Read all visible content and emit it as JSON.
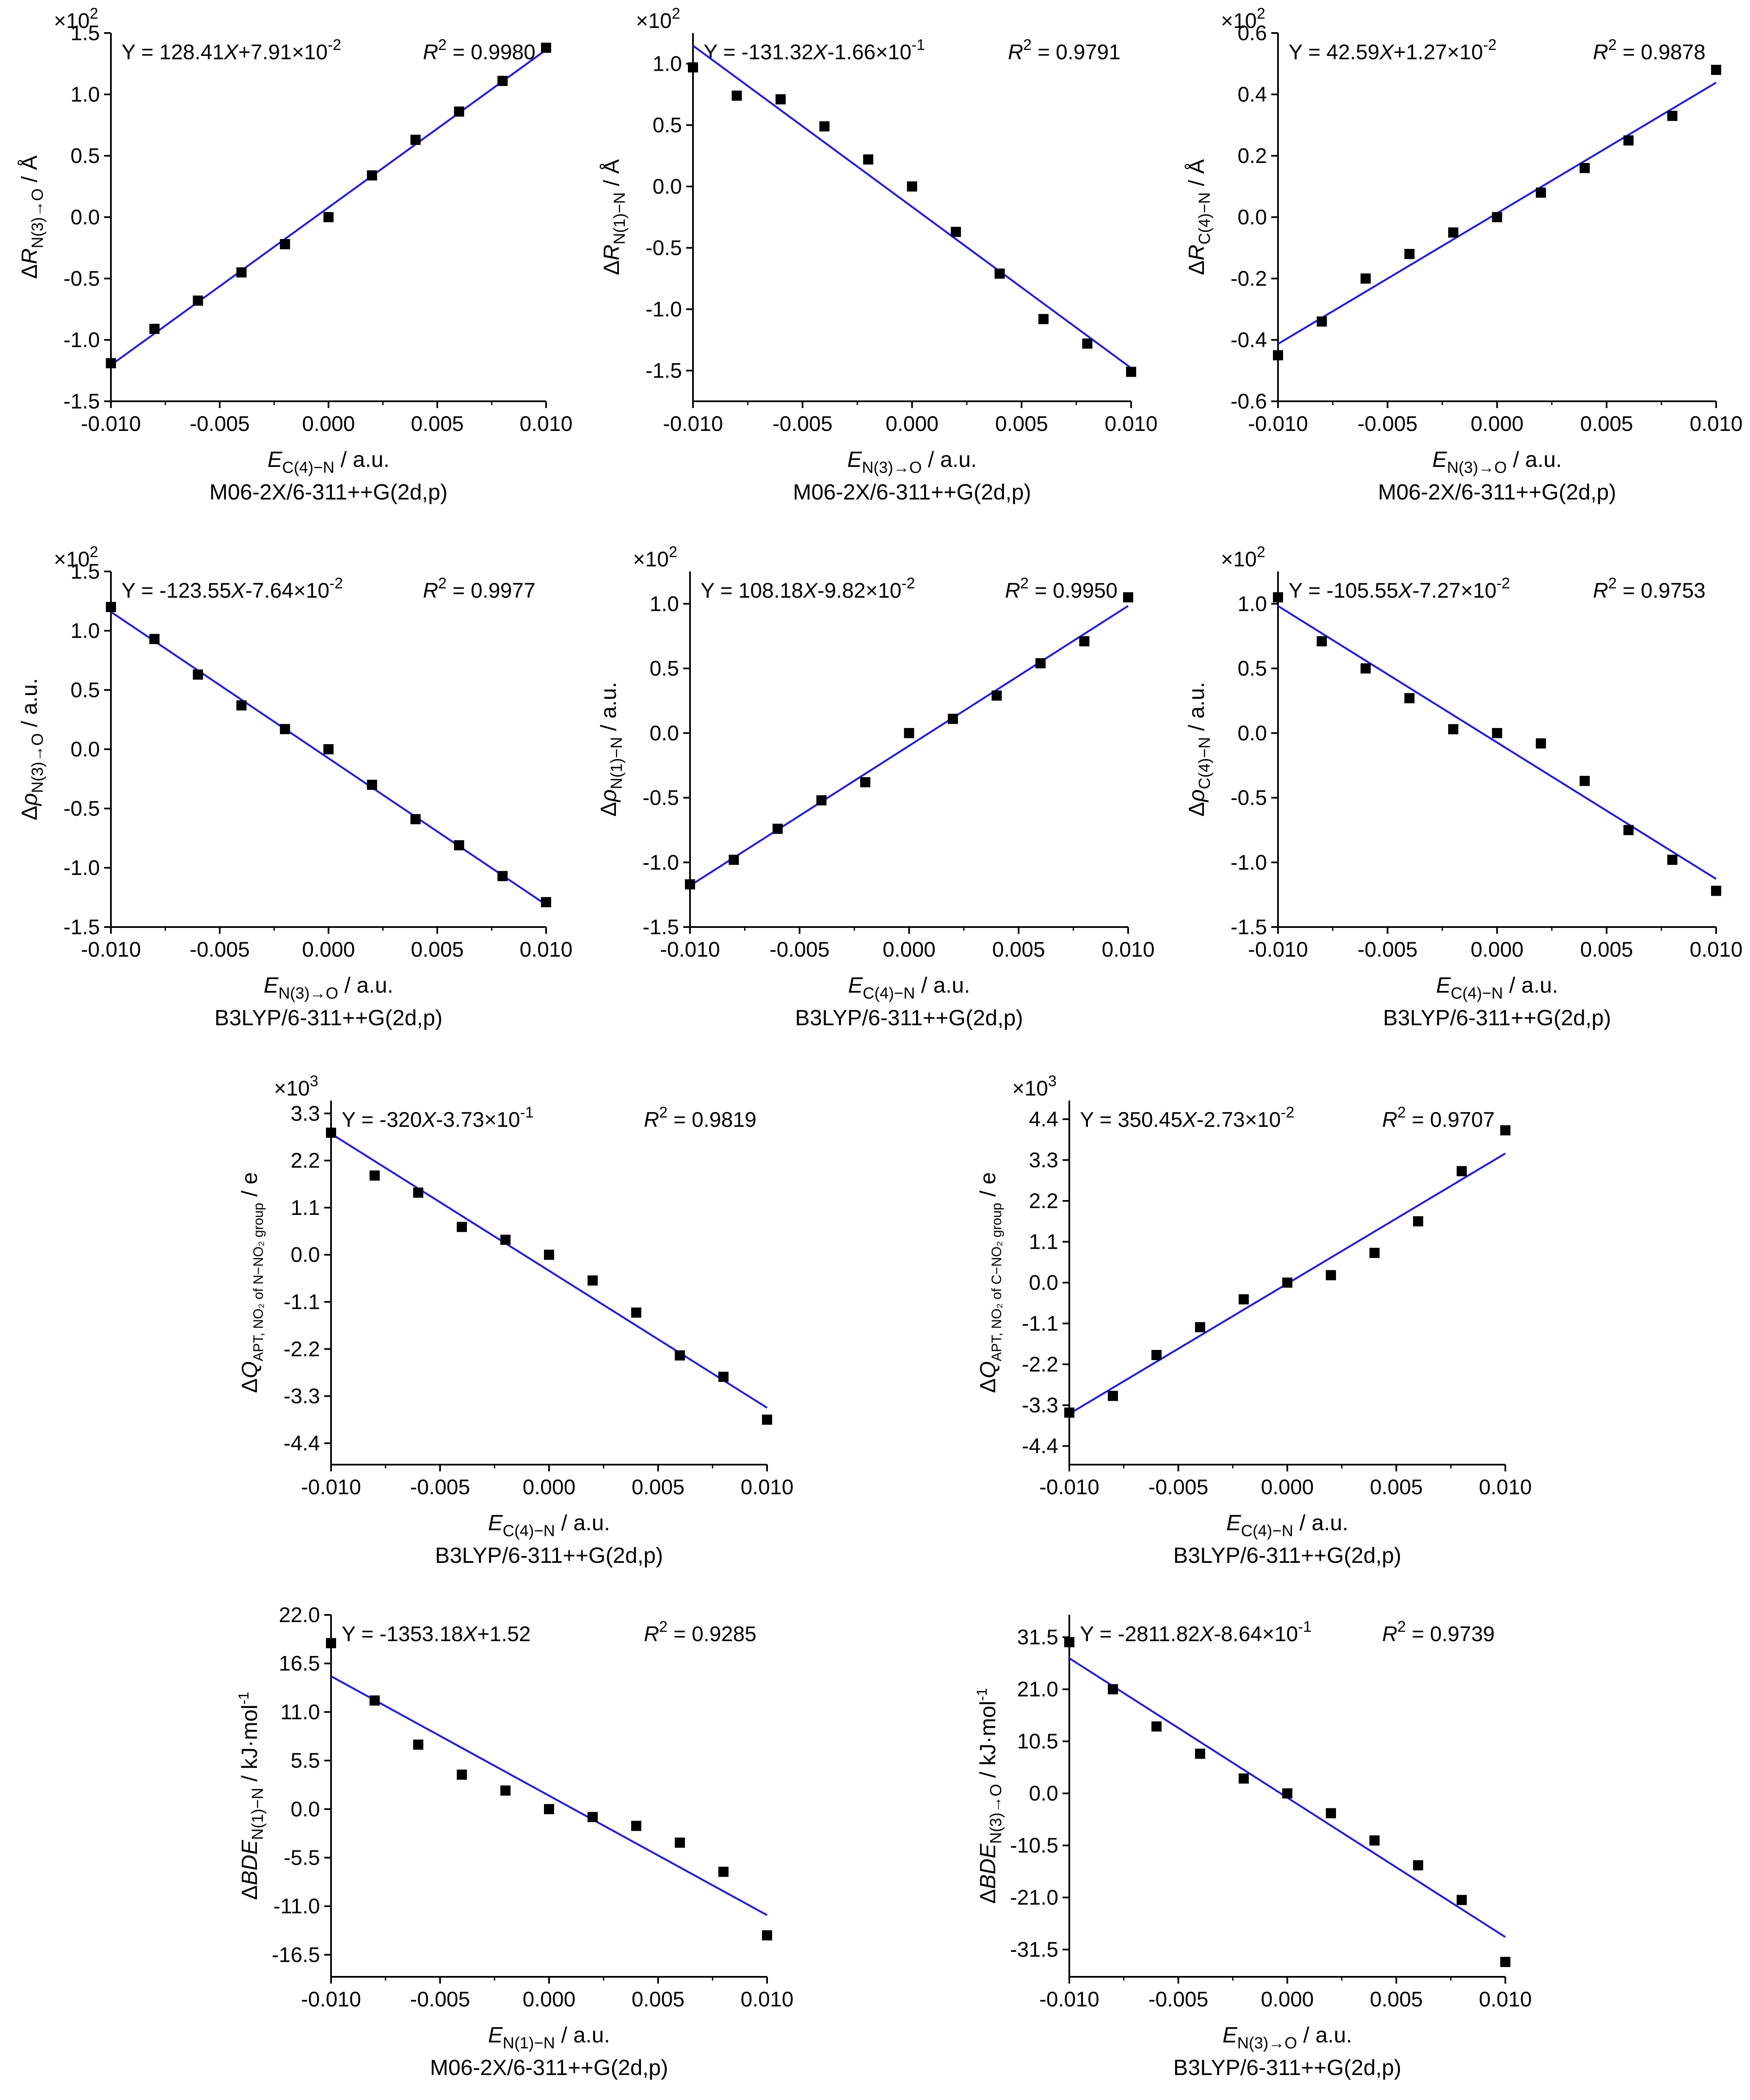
{
  "chart_data": [
    {
      "type": "scatter",
      "id": "a",
      "multiplier": "×10",
      "multiplier_exp": "2",
      "xlabel": {
        "main": "E",
        "sub": "C(4)−N",
        "unit": " / a.u."
      },
      "ylabel": {
        "prefix": "Δ",
        "main": "R",
        "sub": "N(3)→O",
        "unit": " / Å"
      },
      "method": "M06-2X/6-311++G(2d,p)",
      "eq": {
        "prefix": "Y = 128.41",
        "var": "X",
        "rest": "+7.91×10",
        "exp": "-2"
      },
      "r2": {
        "label": "R",
        "exp": "2",
        "value": " = 0.9980"
      },
      "xlim": [
        -0.01,
        0.01
      ],
      "ylim": [
        -1.5,
        1.5
      ],
      "xticks": [
        -0.01,
        -0.005,
        0,
        0.005,
        0.01
      ],
      "xtick_labels": [
        "-0.010",
        "-0.005",
        "0.000",
        "0.005",
        "0.010"
      ],
      "yticks": [
        -1.5,
        -1.0,
        -0.5,
        0.0,
        0.5,
        1.0,
        1.5
      ],
      "ytick_labels": [
        "-1.5",
        "-1.0",
        "-0.5",
        "0.0",
        "0.5",
        "1.0",
        "1.5"
      ],
      "x": [
        -0.01,
        -0.008,
        -0.006,
        -0.004,
        -0.002,
        0,
        0.002,
        0.004,
        0.006,
        0.008,
        0.01
      ],
      "y": [
        -1.19,
        -0.91,
        -0.68,
        -0.45,
        -0.22,
        0.0,
        0.34,
        0.63,
        0.86,
        1.11,
        1.38
      ],
      "fit": {
        "slope": 128.41,
        "intercept": 0.0791
      }
    },
    {
      "type": "scatter",
      "id": "b",
      "multiplier": "×10",
      "multiplier_exp": "2",
      "xlabel": {
        "main": "E",
        "sub": "N(3)→O",
        "unit": " / a.u."
      },
      "ylabel": {
        "prefix": "Δ",
        "main": "R",
        "sub": "N(1)−N",
        "unit": " / Å"
      },
      "method": "M06-2X/6-311++G(2d,p)",
      "eq": {
        "prefix": "Y = -131.32",
        "var": "X",
        "rest": "-1.66×10",
        "exp": "-1"
      },
      "r2": {
        "label": "R",
        "exp": "2",
        "value": " = 0.9791"
      },
      "xlim": [
        -0.01,
        0.01
      ],
      "ylim": [
        -1.75,
        1.25
      ],
      "xticks": [
        -0.01,
        -0.005,
        0,
        0.005,
        0.01
      ],
      "xtick_labels": [
        "-0.010",
        "-0.005",
        "0.000",
        "0.005",
        "0.010"
      ],
      "yticks": [
        -1.5,
        -1.0,
        -0.5,
        0.0,
        0.5,
        1.0
      ],
      "ytick_labels": [
        "-1.5",
        "-1.0",
        "-0.5",
        "0.0",
        "0.5",
        "1.0"
      ],
      "x": [
        -0.01,
        -0.008,
        -0.006,
        -0.004,
        -0.002,
        0,
        0.002,
        0.004,
        0.006,
        0.008,
        0.01
      ],
      "y": [
        0.97,
        0.74,
        0.71,
        0.49,
        0.22,
        0.0,
        -0.37,
        -0.71,
        -1.08,
        -1.28,
        -1.51
      ],
      "fit": {
        "slope": -131.32,
        "intercept": -0.166
      }
    },
    {
      "type": "scatter",
      "id": "c",
      "multiplier": "×10",
      "multiplier_exp": "2",
      "xlabel": {
        "main": "E",
        "sub": "N(3)→O",
        "unit": " / a.u."
      },
      "ylabel": {
        "prefix": "Δ",
        "main": "R",
        "sub": "C(4)−N",
        "unit": " / Å"
      },
      "method": "M06-2X/6-311++G(2d,p)",
      "eq": {
        "prefix": "Y = 42.59",
        "var": "X",
        "rest": "+1.27×10",
        "exp": "-2"
      },
      "r2": {
        "label": "R",
        "exp": "2",
        "value": " = 0.9878"
      },
      "xlim": [
        -0.01,
        0.01
      ],
      "ylim": [
        -0.6,
        0.6
      ],
      "xticks": [
        -0.01,
        -0.005,
        0,
        0.005,
        0.01
      ],
      "xtick_labels": [
        "-0.010",
        "-0.005",
        "0.000",
        "0.005",
        "0.010"
      ],
      "yticks": [
        -0.6,
        -0.4,
        -0.2,
        0.0,
        0.2,
        0.4,
        0.6
      ],
      "ytick_labels": [
        "-0.6",
        "-0.4",
        "-0.2",
        "0.0",
        "0.2",
        "0.4",
        "0.6"
      ],
      "x": [
        -0.01,
        -0.008,
        -0.006,
        -0.004,
        -0.002,
        0,
        0.002,
        0.004,
        0.006,
        0.008,
        0.01
      ],
      "y": [
        -0.45,
        -0.34,
        -0.2,
        -0.12,
        -0.05,
        0.0,
        0.08,
        0.16,
        0.25,
        0.33,
        0.48
      ],
      "fit": {
        "slope": 42.59,
        "intercept": 0.0127
      }
    },
    {
      "type": "scatter",
      "id": "d",
      "multiplier": "×10",
      "multiplier_exp": "2",
      "xlabel": {
        "main": "E",
        "sub": "N(3)→O",
        "unit": " / a.u."
      },
      "ylabel": {
        "prefix": "Δ",
        "main": "ρ",
        "sub": "N(3)→O",
        "unit": " / a.u."
      },
      "method": "B3LYP/6-311++G(2d,p)",
      "eq": {
        "prefix": "Y = -123.55",
        "var": "X",
        "rest": "-7.64×10",
        "exp": "-2"
      },
      "r2": {
        "label": "R",
        "exp": "2",
        "value": " = 0.9977"
      },
      "xlim": [
        -0.01,
        0.01
      ],
      "ylim": [
        -1.5,
        1.5
      ],
      "xticks": [
        -0.01,
        -0.005,
        0,
        0.005,
        0.01
      ],
      "xtick_labels": [
        "-0.010",
        "-0.005",
        "0.000",
        "0.005",
        "0.010"
      ],
      "yticks": [
        -1.5,
        -1.0,
        -0.5,
        0.0,
        0.5,
        1.0,
        1.5
      ],
      "ytick_labels": [
        "-1.5",
        "-1.0",
        "-0.5",
        "0.0",
        "0.5",
        "1.0",
        "1.5"
      ],
      "x": [
        -0.01,
        -0.008,
        -0.006,
        -0.004,
        -0.002,
        0,
        0.002,
        0.004,
        0.006,
        0.008,
        0.01
      ],
      "y": [
        1.2,
        0.93,
        0.63,
        0.37,
        0.17,
        0.0,
        -0.3,
        -0.59,
        -0.81,
        -1.07,
        -1.29
      ],
      "fit": {
        "slope": -123.55,
        "intercept": -0.0764
      }
    },
    {
      "type": "scatter",
      "id": "e",
      "multiplier": "×10",
      "multiplier_exp": "2",
      "xlabel": {
        "main": "E",
        "sub": "C(4)−N",
        "unit": " / a.u."
      },
      "ylabel": {
        "prefix": "Δ",
        "main": "ρ",
        "sub": "N(1)−N",
        "unit": " / a.u."
      },
      "method": "B3LYP/6-311++G(2d,p)",
      "eq": {
        "prefix": "Y = 108.18",
        "var": "X",
        "rest": "-9.82×10",
        "exp": "-2"
      },
      "r2": {
        "label": "R",
        "exp": "2",
        "value": " = 0.9950"
      },
      "xlim": [
        -0.01,
        0.01
      ],
      "ylim": [
        -1.5,
        1.25
      ],
      "xticks": [
        -0.01,
        -0.005,
        0,
        0.005,
        0.01
      ],
      "xtick_labels": [
        "-0.010",
        "-0.005",
        "0.000",
        "0.005",
        "0.010"
      ],
      "yticks": [
        -1.5,
        -1.0,
        -0.5,
        0.0,
        0.5,
        1.0
      ],
      "ytick_labels": [
        "-1.5",
        "-1.0",
        "-0.5",
        "0.0",
        "0.5",
        "1.0"
      ],
      "x": [
        -0.01,
        -0.008,
        -0.006,
        -0.004,
        -0.002,
        0,
        0.002,
        0.004,
        0.006,
        0.008,
        0.01
      ],
      "y": [
        -1.17,
        -0.98,
        -0.74,
        -0.52,
        -0.38,
        0.0,
        0.11,
        0.29,
        0.54,
        0.71,
        1.05
      ],
      "fit": {
        "slope": 108.18,
        "intercept": -0.0982
      }
    },
    {
      "type": "scatter",
      "id": "f",
      "multiplier": "×10",
      "multiplier_exp": "2",
      "xlabel": {
        "main": "E",
        "sub": "C(4)−N",
        "unit": " / a.u."
      },
      "ylabel": {
        "prefix": "Δ",
        "main": "ρ",
        "sub": "C(4)−N",
        "unit": " / a.u."
      },
      "method": "B3LYP/6-311++G(2d,p)",
      "eq": {
        "prefix": "Y = -105.55",
        "var": "X",
        "rest": "-7.27×10",
        "exp": "-2"
      },
      "r2": {
        "label": "R",
        "exp": "2",
        "value": " = 0.9753"
      },
      "xlim": [
        -0.01,
        0.01
      ],
      "ylim": [
        -1.5,
        1.25
      ],
      "xticks": [
        -0.01,
        -0.005,
        0,
        0.005,
        0.01
      ],
      "xtick_labels": [
        "-0.010",
        "-0.005",
        "0.000",
        "0.005",
        "0.010"
      ],
      "yticks": [
        -1.5,
        -1.0,
        -0.5,
        0.0,
        0.5,
        1.0
      ],
      "ytick_labels": [
        "-1.5",
        "-1.0",
        "-0.5",
        "0.0",
        "0.5",
        "1.0"
      ],
      "x": [
        -0.01,
        -0.008,
        -0.006,
        -0.004,
        -0.002,
        0,
        0.002,
        0.004,
        0.006,
        0.008,
        0.01
      ],
      "y": [
        1.05,
        0.71,
        0.5,
        0.27,
        0.03,
        0.0,
        -0.08,
        -0.37,
        -0.75,
        -0.98,
        -1.22
      ],
      "fit": {
        "slope": -105.55,
        "intercept": -0.0727
      }
    },
    {
      "type": "scatter",
      "id": "g",
      "multiplier": "×10",
      "multiplier_exp": "3",
      "xlabel": {
        "main": "E",
        "sub": "C(4)−N",
        "unit": " / a.u."
      },
      "ylabel": {
        "prefix": "Δ",
        "main": "Q",
        "sub": "APT, NO₂ of N−NO₂ group",
        "unit": " / e"
      },
      "method": "B3LYP/6-311++G(2d,p)",
      "eq": {
        "prefix": "Y = -320",
        "var": "X",
        "rest": "-3.73×10",
        "exp": "-1"
      },
      "r2": {
        "label": "R",
        "exp": "2",
        "value": " = 0.9819"
      },
      "xlim": [
        -0.01,
        0.01
      ],
      "ylim": [
        -4.9,
        3.6
      ],
      "xticks": [
        -0.01,
        -0.005,
        0,
        0.005,
        0.01
      ],
      "xtick_labels": [
        "-0.010",
        "-0.005",
        "0.000",
        "0.005",
        "0.010"
      ],
      "yticks": [
        -4.4,
        -3.3,
        -2.2,
        -1.1,
        0.0,
        1.1,
        2.2,
        3.3
      ],
      "ytick_labels": [
        "-4.4",
        "-3.3",
        "-2.2",
        "-1.1",
        "0.0",
        "1.1",
        "2.2",
        "3.3"
      ],
      "x": [
        -0.01,
        -0.008,
        -0.006,
        -0.004,
        -0.002,
        0,
        0.002,
        0.004,
        0.006,
        0.008,
        0.01
      ],
      "y": [
        2.85,
        1.85,
        1.45,
        0.65,
        0.35,
        0.0,
        -0.6,
        -1.35,
        -2.35,
        -2.85,
        -3.85
      ],
      "fit": {
        "slope": -320,
        "intercept": -0.373
      }
    },
    {
      "type": "scatter",
      "id": "h",
      "multiplier": "×10",
      "multiplier_exp": "3",
      "xlabel": {
        "main": "E",
        "sub": "C(4)−N",
        "unit": " / a.u."
      },
      "ylabel": {
        "prefix": "Δ",
        "main": "Q",
        "sub": "APT, NO₂ of C−NO₂ group",
        "unit": " / e"
      },
      "method": "B3LYP/6-311++G(2d,p)",
      "eq": {
        "prefix": "Y = 350.45",
        "var": "X",
        "rest": "-2.73×10",
        "exp": "-2"
      },
      "r2": {
        "label": "R",
        "exp": "2",
        "value": " = 0.9707"
      },
      "xlim": [
        -0.01,
        0.01
      ],
      "ylim": [
        -4.9,
        4.9
      ],
      "xticks": [
        -0.01,
        -0.005,
        0,
        0.005,
        0.01
      ],
      "xtick_labels": [
        "-0.010",
        "-0.005",
        "0.000",
        "0.005",
        "0.010"
      ],
      "yticks": [
        -4.4,
        -3.3,
        -2.2,
        -1.1,
        0.0,
        1.1,
        2.2,
        3.3,
        4.4
      ],
      "ytick_labels": [
        "-4.4",
        "-3.3",
        "-2.2",
        "-1.1",
        "0.0",
        "1.1",
        "2.2",
        "3.3",
        "4.4"
      ],
      "x": [
        -0.01,
        -0.008,
        -0.006,
        -0.004,
        -0.002,
        0,
        0.002,
        0.004,
        0.006,
        0.008,
        0.01
      ],
      "y": [
        -3.5,
        -3.05,
        -1.95,
        -1.2,
        -0.45,
        0.0,
        0.2,
        0.8,
        1.65,
        3.0,
        4.1
      ],
      "fit": {
        "slope": 350.45,
        "intercept": -0.0273
      }
    },
    {
      "type": "scatter",
      "id": "i",
      "multiplier": "",
      "multiplier_exp": "",
      "xlabel": {
        "main": "E",
        "sub": "N(1)−N",
        "unit": " / a.u."
      },
      "ylabel": {
        "prefix": "Δ",
        "main": "BDE",
        "sub": "N(1)−N",
        "unit": " / kJ·mol",
        "unit_exp": "-1"
      },
      "method": "M06-2X/6-311++G(2d,p)",
      "eq": {
        "prefix": "Y = -1353.18",
        "var": "X",
        "rest": "+1.52",
        "exp": ""
      },
      "r2": {
        "label": "R",
        "exp": "2",
        "value": " = 0.9285"
      },
      "xlim": [
        -0.01,
        0.01
      ],
      "ylim": [
        -19,
        22
      ],
      "xticks": [
        -0.01,
        -0.005,
        0,
        0.005,
        0.01
      ],
      "xtick_labels": [
        "-0.010",
        "-0.005",
        "0.000",
        "0.005",
        "0.010"
      ],
      "yticks": [
        -16.5,
        -11.0,
        -5.5,
        0.0,
        5.5,
        11.0,
        16.5,
        22.0
      ],
      "ytick_labels": [
        "-16.5",
        "-11.0",
        "-5.5",
        "0.0",
        "5.5",
        "11.0",
        "16.5",
        "22.0"
      ],
      "x": [
        -0.01,
        -0.008,
        -0.006,
        -0.004,
        -0.002,
        0,
        0.002,
        0.004,
        0.006,
        0.008,
        0.01
      ],
      "y": [
        18.8,
        12.3,
        7.3,
        3.9,
        2.1,
        0.0,
        -0.9,
        -1.9,
        -3.8,
        -7.1,
        -14.3
      ],
      "fit": {
        "slope": -1353.18,
        "intercept": 1.52
      }
    },
    {
      "type": "scatter",
      "id": "j",
      "multiplier": "",
      "multiplier_exp": "",
      "xlabel": {
        "main": "E",
        "sub": "N(3)→O",
        "unit": " / a.u."
      },
      "ylabel": {
        "prefix": "Δ",
        "main": "BDE",
        "sub": "N(3)→O",
        "unit": " / kJ·mol",
        "unit_exp": "-1"
      },
      "method": "B3LYP/6-311++G(2d,p)",
      "eq": {
        "prefix": "Y = -2811.82",
        "var": "X",
        "rest": "-8.64×10",
        "exp": "-1"
      },
      "r2": {
        "label": "R",
        "exp": "2",
        "value": " = 0.9739"
      },
      "xlim": [
        -0.01,
        0.01
      ],
      "ylim": [
        -37,
        36
      ],
      "xticks": [
        -0.01,
        -0.005,
        0,
        0.005,
        0.01
      ],
      "xtick_labels": [
        "-0.010",
        "-0.005",
        "0.000",
        "0.005",
        "0.010"
      ],
      "yticks": [
        -31.5,
        -21.0,
        -10.5,
        0.0,
        10.5,
        21.0,
        31.5
      ],
      "ytick_labels": [
        "-31.5",
        "-21.0",
        "-10.5",
        "0.0",
        "10.5",
        "21.0",
        "31.5"
      ],
      "x": [
        -0.01,
        -0.008,
        -0.006,
        -0.004,
        -0.002,
        0,
        0.002,
        0.004,
        0.006,
        0.008,
        0.01
      ],
      "y": [
        30.5,
        21.0,
        13.5,
        8.0,
        3.0,
        0.0,
        -4.0,
        -9.5,
        -14.5,
        -21.5,
        -34.0
      ],
      "fit": {
        "slope": -2811.82,
        "intercept": -0.864
      }
    }
  ]
}
